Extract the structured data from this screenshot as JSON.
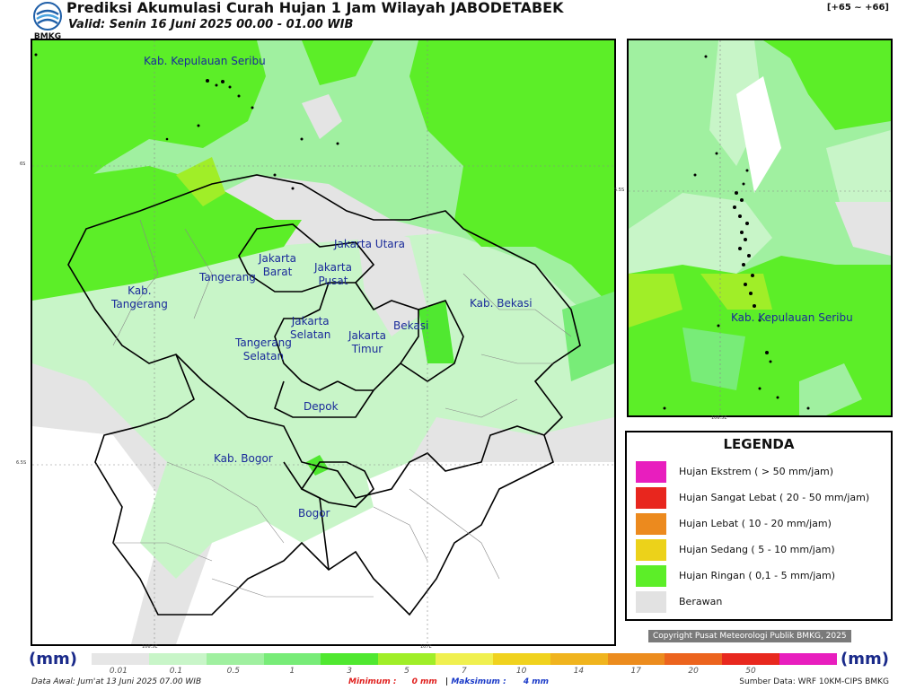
{
  "header": {
    "logo_text": "BMKG",
    "title": "Prediksi Akumulasi Curah Hujan 1 Jam Wilayah JABODETABEK",
    "valid": "Valid: Senin 16 Juni 2025 00.00 - 01.00 WIB",
    "range": "[+65 ~ +66]"
  },
  "map": {
    "region_labels": [
      "Kab. Kepulauan Seribu",
      "Jakarta Utara",
      "Jakarta\nBarat",
      "Jakarta\nPusat",
      "Tangerang",
      "Kab.\nTangerang",
      "Jakarta\nSelatan",
      "Jakarta\nTimur",
      "Bekasi",
      "Kab. Bekasi",
      "Tangerang\nSelatan",
      "Depok",
      "Kab. Bogor",
      "Bogor"
    ],
    "lat_ticks": [
      "6S",
      "6.5S"
    ],
    "lon_ticks": [
      "106.5E",
      "107E"
    ],
    "inset_label": "Kab. Kepulauan Seribu",
    "inset_lat_tick": "5.5S",
    "inset_lon_tick": "106.5E"
  },
  "legend": {
    "title": "LEGENDA",
    "items": [
      {
        "label": "Hujan Ekstrem ( > 50 mm/jam)",
        "color": "#e81ebe"
      },
      {
        "label": "Hujan Sangat Lebat ( 20 - 50 mm/jam)",
        "color": "#e8261e"
      },
      {
        "label": "Hujan Lebat ( 10 - 20 mm/jam)",
        "color": "#ec8a1e"
      },
      {
        "label": "Hujan Sedang ( 5 - 10 mm/jam)",
        "color": "#ecd21a"
      },
      {
        "label": "Hujan Ringan ( 0,1 - 5 mm/jam)",
        "color": "#5cee28"
      },
      {
        "label": "Berawan",
        "color": "#e2e2e2"
      }
    ]
  },
  "copyright": "Copyright Pusat Meteorologi Publik BMKG, 2025",
  "colorbar": {
    "unit_left": "(mm)",
    "unit_right": "(mm)",
    "labels": [
      "0.01",
      "0.1",
      "0.5",
      "1",
      "3",
      "5",
      "7",
      "10",
      "14",
      "17",
      "20",
      "50"
    ],
    "colors": [
      "#e6e6e6",
      "#c8f5c8",
      "#a0f0a0",
      "#78ec78",
      "#50e830",
      "#a0ee28",
      "#f0f050",
      "#f0d21e",
      "#f0b41e",
      "#ec8c1e",
      "#ec641e",
      "#e8281e",
      "#e81ebe"
    ]
  },
  "footer": {
    "data_awal": "Data Awal: Jum'at 13 Juni 2025 07.00 WIB",
    "minimum_label": "Minimum :",
    "minimum_value": "0 mm",
    "separator": "|",
    "maksimum_label": "Maksimum :",
    "maksimum_value": "4 mm",
    "source": "Sumber Data: WRF 10KM-CIPS BMKG"
  }
}
